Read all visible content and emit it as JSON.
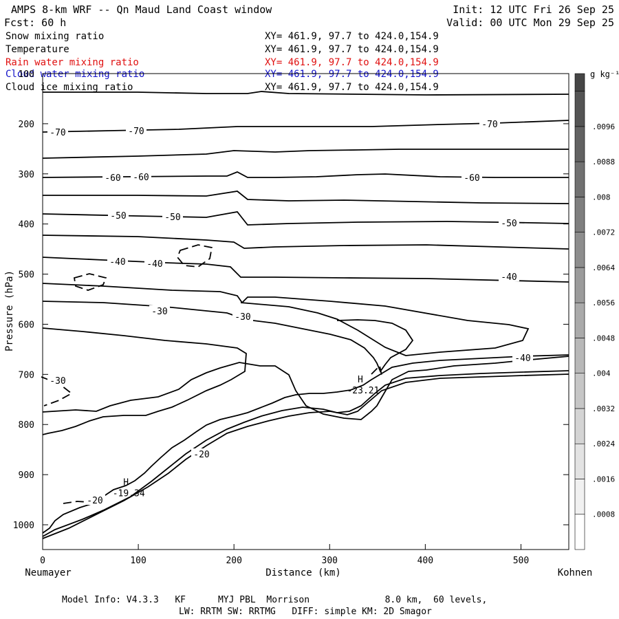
{
  "header": {
    "title": "AMPS 8-km WRF -- Qn Maud Land Coast window",
    "init": "Init: 12 UTC Fri 26 Sep 25",
    "fcst": "Fcst:   60 h",
    "valid": "Valid: 00 UTC Mon 29 Sep 25"
  },
  "fields": [
    {
      "name": "Snow mixing ratio",
      "xy": "XY= 461.9, 97.7 to 424.0,154.9",
      "color": "#000000"
    },
    {
      "name": "Temperature",
      "xy": "XY= 461.9, 97.7 to 424.0,154.9",
      "color": "#000000"
    },
    {
      "name": "Rain water mixing ratio",
      "xy": "XY= 461.9, 97.7 to 424.0,154.9",
      "color": "#e01010"
    },
    {
      "name": "Cloud water mixing ratio",
      "xy": "XY= 461.9, 97.7 to 424.0,154.9",
      "color": "#1010c8"
    },
    {
      "name": "Cloud ice mixing ratio",
      "xy": "XY= 461.9, 97.7 to 424.0,154.9",
      "color": "#000000"
    }
  ],
  "chart_data": {
    "type": "contour",
    "xlabel": "Distance (km)",
    "ylabel": "Pressure (hPa)",
    "xlim": [
      0,
      550
    ],
    "ylim": [
      1050,
      100
    ],
    "x_ticks": [
      "0",
      "100",
      "200",
      "300",
      "400",
      "500"
    ],
    "y_ticks": [
      "100",
      "200",
      "300",
      "400",
      "500",
      "600",
      "700",
      "800",
      "900",
      "1000"
    ],
    "left_endpoint": "Neumayer",
    "right_endpoint": "Kohnen",
    "colorbar": {
      "unit_label": "g kg⁻¹",
      "levels": [
        "0",
        ".0008",
        ".0016",
        ".0024",
        ".0032",
        ".004",
        ".0048",
        ".0056",
        ".0064",
        ".0072",
        ".008",
        ".0088",
        ".0096"
      ]
    },
    "temperature_labels": [
      "-70",
      "-70",
      "-70",
      "-60",
      "-60",
      "-60",
      "-50",
      "-50",
      "-50",
      "-40",
      "-40",
      "-40",
      "-40",
      "-30",
      "-30",
      "-30",
      "-20",
      "-20"
    ],
    "extrema": [
      {
        "type": "H",
        "value": "-23.21",
        "x_km": 335,
        "p_hPa": 735
      },
      {
        "type": "H",
        "value": "-19.34",
        "x_km": 90,
        "p_hPa": 940
      }
    ]
  },
  "footer": {
    "line1": "Model Info: V4.3.3   KF      MYJ PBL  Morrison              8.0 km,  60 levels,",
    "line2": "LW: RRTM SW: RRTMG   DIFF: simple KM: 2D Smagor"
  }
}
